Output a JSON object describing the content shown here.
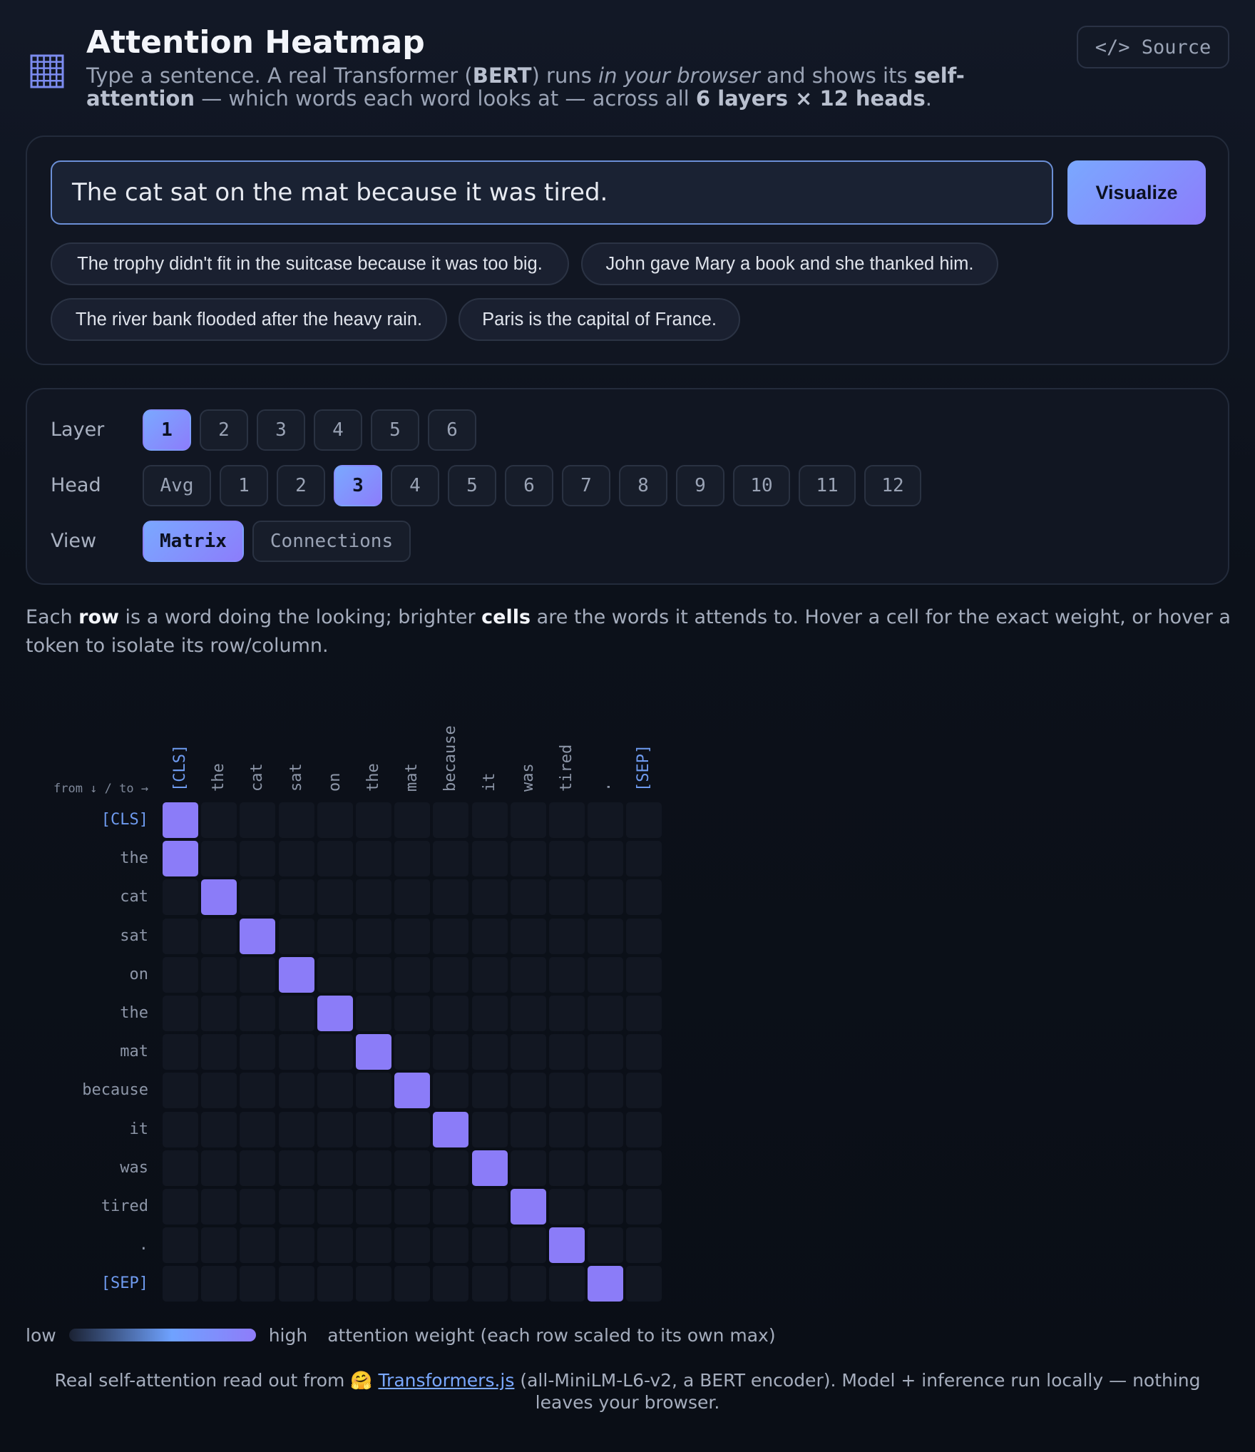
{
  "header": {
    "title": "Attention Heatmap",
    "subtitle_parts": {
      "p1": "Type a sentence. A real Transformer (",
      "b1": "BERT",
      "p2": ") runs ",
      "i1": "in your browser",
      "p3": " and shows its ",
      "b2": "self-attention",
      "p4": " — which words each word looks at — across all ",
      "b3": "6 layers × 12 heads",
      "p5": "."
    },
    "source_label": "</> Source",
    "logo_icon": "grid-icon"
  },
  "input": {
    "value": "The cat sat on the mat because it was tired.",
    "visualize_label": "Visualize"
  },
  "examples": [
    "The trophy didn't fit in the suitcase because it was too big.",
    "John gave Mary a book and she thanked him.",
    "The river bank flooded after the heavy rain.",
    "Paris is the capital of France."
  ],
  "controls": {
    "layer_label": "Layer",
    "layers": [
      "1",
      "2",
      "3",
      "4",
      "5",
      "6"
    ],
    "selected_layer": "1",
    "head_label": "Head",
    "heads": [
      "Avg",
      "1",
      "2",
      "3",
      "4",
      "5",
      "6",
      "7",
      "8",
      "9",
      "10",
      "11",
      "12"
    ],
    "selected_head": "3",
    "view_label": "View",
    "views": [
      "Matrix",
      "Connections"
    ],
    "selected_view": "Matrix"
  },
  "description": {
    "p1": "Each ",
    "b1": "row",
    "p2": " is a word doing the looking; brighter ",
    "b2": "cells",
    "p3": " are the words it attends to. Hover a cell for the exact weight, or hover a token to isolate its row/column."
  },
  "matrix": {
    "corner_label": "from ↓ / to →",
    "tokens": [
      "[CLS]",
      "the",
      "cat",
      "sat",
      "on",
      "the",
      "mat",
      "because",
      "it",
      "was",
      "tired",
      ".",
      "[SEP]"
    ],
    "special_tokens": [
      "[CLS]",
      "[SEP]"
    ],
    "argmax_target_per_row": [
      0,
      0,
      1,
      2,
      3,
      4,
      5,
      6,
      7,
      8,
      9,
      10,
      11
    ],
    "max_weight_fraction": 1.0,
    "high_color": "#8b7cf8",
    "low_color": "#121722"
  },
  "legend": {
    "low": "low",
    "high": "high",
    "caption": "attention weight (each row scaled to its own max)"
  },
  "footer": {
    "p1": "Real self-attention read out from 🤗 ",
    "link": "Transformers.js",
    "p2": " (all-MiniLM-L6-v2, a BERT encoder). Model + inference run locally — nothing leaves your browser."
  }
}
